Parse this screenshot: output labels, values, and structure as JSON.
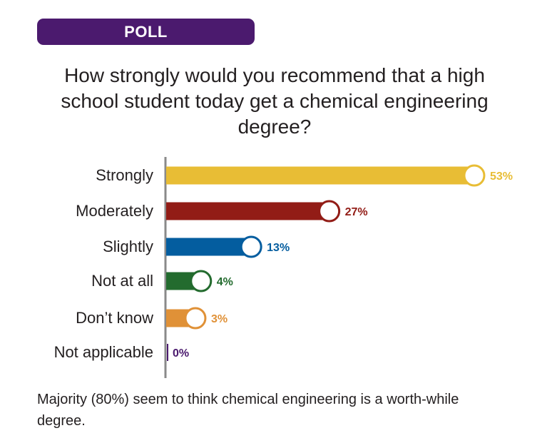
{
  "badge": "POLL",
  "chart_data": {
    "type": "bar",
    "orientation": "horizontal",
    "title": "How strongly would you recommend that a high school student today get a chemical engineering degree?",
    "categories": [
      "Strongly",
      "Moderately",
      "Slightly",
      "Not at all",
      "Don’t know",
      "Not applicable"
    ],
    "values": [
      53,
      27,
      13,
      4,
      3,
      0
    ],
    "data_labels": [
      "53%",
      "27%",
      "13%",
      "4%",
      "3%",
      "0%"
    ],
    "colors": [
      "#e8bd35",
      "#921c16",
      "#045d9f",
      "#236b2e",
      "#e09137",
      "#4b1a6e"
    ],
    "unit": "%",
    "grid": false
  },
  "footer": "Majority (80%) seem to think chemical engineering is a worth-while degree."
}
